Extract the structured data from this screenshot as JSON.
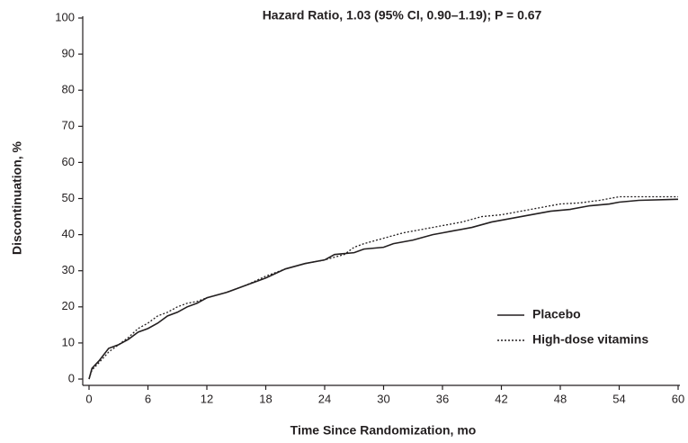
{
  "chart_data": {
    "type": "line",
    "title": "Hazard Ratio, 1.03 (95% CI, 0.90–1.19); P = 0.67",
    "x_label": "Time Since Randomization, mo",
    "y_label": "Discontinuation, %",
    "xlim": [
      0,
      60
    ],
    "ylim": [
      0,
      100
    ],
    "xticks": [
      0,
      6,
      12,
      18,
      24,
      30,
      36,
      42,
      48,
      54,
      60
    ],
    "yticks": [
      0,
      10,
      20,
      30,
      40,
      50,
      60,
      70,
      80,
      90,
      100
    ],
    "grid": false,
    "legend": "lower right",
    "series": [
      {
        "name": "Placebo",
        "color": "#231f20",
        "line_style": "solid",
        "x": [
          0,
          0.3,
          1,
          2,
          3,
          4,
          5,
          6,
          7,
          8,
          9,
          10,
          11,
          12,
          14,
          16,
          18,
          20,
          22,
          24,
          25,
          27,
          28,
          30,
          31,
          33,
          35,
          36,
          37,
          39,
          41,
          43,
          45,
          47,
          49,
          51,
          53,
          54,
          56,
          60
        ],
        "values": [
          0,
          3,
          5,
          8.5,
          9.5,
          11,
          13,
          14,
          15.5,
          17.5,
          18.5,
          20,
          21,
          22.5,
          24,
          26,
          28,
          30.5,
          32,
          33,
          34.5,
          35,
          36,
          36.5,
          37.5,
          38.5,
          40,
          40.5,
          41,
          42,
          43.5,
          44.5,
          45.5,
          46.5,
          47,
          48,
          48.5,
          49,
          49.5,
          49.8
        ]
      },
      {
        "name": "High-dose vitamins",
        "color": "#231f20",
        "line_style": "dotted",
        "x": [
          0,
          0.3,
          1,
          2,
          3,
          4,
          5,
          6,
          7,
          8,
          9,
          10,
          11,
          12,
          14,
          16,
          18,
          20,
          22,
          24,
          26,
          27,
          28,
          30,
          32,
          34,
          36,
          38,
          40,
          42,
          44,
          46,
          48,
          50,
          52,
          54,
          56,
          60
        ],
        "values": [
          0,
          2.5,
          4.5,
          7.5,
          9.5,
          11.5,
          14,
          15.5,
          17.5,
          18.5,
          20,
          21,
          21.5,
          22.5,
          24,
          26,
          28.5,
          30.5,
          32,
          33,
          34.5,
          36.5,
          37.5,
          39,
          40.5,
          41.5,
          42.5,
          43.5,
          45,
          45.5,
          46.5,
          47.5,
          48.5,
          48.8,
          49.5,
          50.5,
          50.5,
          50.5
        ]
      }
    ]
  }
}
